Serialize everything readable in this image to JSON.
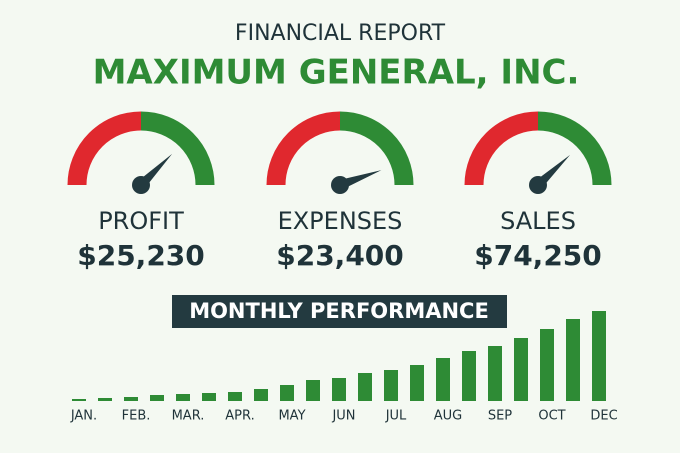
{
  "header": {
    "kicker": "FINANCIAL REPORT",
    "title": "MAXIMUM GENERAL, INC."
  },
  "kpis": [
    {
      "label": "PROFIT",
      "value": "$25,230",
      "gauge": 75
    },
    {
      "label": "EXPENSES",
      "value": "$23,400",
      "gauge": 89
    },
    {
      "label": "SALES",
      "value": "$74,250",
      "gauge": 76
    }
  ],
  "chart_data": {
    "type": "bar",
    "title": "MONTHLY PERFORMANCE",
    "color": "#2e8b35",
    "categories": [
      "JAN.",
      null,
      "FEB.",
      null,
      "MAR.",
      null,
      "APR.",
      null,
      "MAY",
      null,
      "JUN",
      null,
      "JUL",
      null,
      "AUG",
      null,
      "SEP",
      null,
      "OCT",
      null,
      "DEC"
    ],
    "values": [
      2,
      3,
      4,
      6,
      7,
      8,
      9,
      12,
      16,
      21,
      23,
      28,
      31,
      36,
      43,
      50,
      55,
      63,
      72,
      82,
      90
    ]
  }
}
